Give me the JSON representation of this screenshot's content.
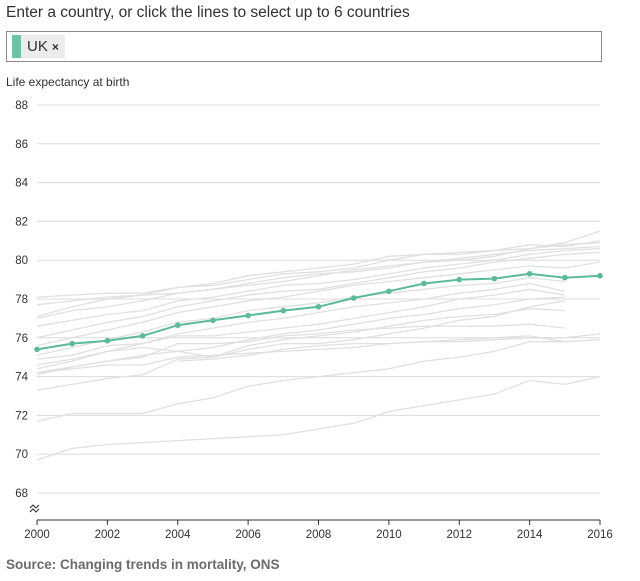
{
  "prompt": "Enter a country, or click the lines to select up to 6 countries",
  "selected_chips": [
    {
      "label": "UK",
      "remove_glyph": "×",
      "color": "#6cc4a4"
    }
  ],
  "source": "Source: Changing trends in mortality, ONS",
  "colors": {
    "highlight": "#5cba9b",
    "background_line": "#e0e0e0",
    "grid": "#dcdcdc",
    "axis": "#323132"
  },
  "chart_data": {
    "type": "line",
    "title": "",
    "xlabel": "",
    "ylabel": "Life expectancy at birth",
    "xlim": [
      2000,
      2016
    ],
    "ylim": [
      68,
      88
    ],
    "axis_break": true,
    "x_ticks": [
      "2000",
      "2002",
      "2004",
      "2006",
      "2008",
      "2010",
      "2012",
      "2014",
      "2016"
    ],
    "y_ticks": [
      "68",
      "70",
      "72",
      "74",
      "76",
      "78",
      "80",
      "82",
      "84",
      "86",
      "88"
    ],
    "grid": "horizontal",
    "x": [
      2000,
      2001,
      2002,
      2003,
      2004,
      2005,
      2006,
      2007,
      2008,
      2009,
      2010,
      2011,
      2012,
      2013,
      2014,
      2015,
      2016
    ],
    "series": [
      {
        "name": "UK",
        "highlighted": true,
        "values": [
          75.4,
          75.7,
          75.85,
          76.1,
          76.65,
          76.9,
          77.15,
          77.4,
          77.6,
          78.05,
          78.4,
          78.8,
          79.0,
          79.05,
          79.3,
          79.1,
          79.2
        ]
      },
      {
        "values": [
          78.1,
          78.2,
          78.3,
          78.3,
          78.6,
          78.8,
          79.2,
          79.4,
          79.6,
          79.8,
          80.2,
          80.3,
          80.4,
          80.5,
          80.8,
          80.7,
          81.0
        ]
      },
      {
        "values": [
          77.7,
          77.9,
          78.1,
          78.2,
          78.6,
          78.7,
          79.0,
          79.3,
          79.4,
          79.6,
          80.0,
          80.3,
          80.3,
          80.5,
          80.6,
          80.8,
          80.9
        ]
      },
      {
        "values": [
          77.1,
          77.6,
          78.0,
          78.2,
          78.3,
          78.5,
          78.7,
          78.9,
          79.2,
          79.5,
          79.7,
          79.9,
          80.1,
          80.3,
          80.5,
          80.6,
          80.7
        ]
      },
      {
        "values": [
          77.0,
          77.4,
          77.6,
          77.9,
          78.3,
          78.5,
          78.8,
          79.1,
          79.3,
          79.4,
          79.6,
          79.9,
          80.0,
          80.2,
          80.6,
          80.9,
          81.5
        ]
      },
      {
        "values": [
          76.6,
          76.9,
          77.2,
          77.4,
          77.9,
          78.1,
          78.4,
          78.7,
          78.8,
          79.0,
          79.3,
          79.6,
          79.8,
          80.0,
          80.3,
          80.5,
          80.6
        ]
      },
      {
        "values": [
          76.0,
          76.4,
          76.8,
          77.1,
          77.6,
          77.9,
          78.2,
          78.4,
          78.5,
          78.8,
          79.1,
          79.4,
          79.6,
          79.9,
          80.1,
          80.3,
          80.4
        ]
      },
      {
        "values": [
          75.6,
          76.0,
          76.4,
          76.8,
          77.3,
          77.6,
          77.9,
          78.1,
          78.4,
          78.7,
          78.9,
          79.1,
          79.3,
          79.5,
          79.7,
          79.6,
          79.9
        ]
      },
      {
        "values": [
          75.1,
          75.5,
          75.9,
          76.3,
          76.8,
          77.0,
          77.4,
          77.6,
          77.8,
          78.1,
          78.3,
          78.5,
          78.7,
          78.8,
          79.1,
          78.9,
          null
        ]
      },
      {
        "values": [
          74.4,
          74.8,
          75.3,
          75.7,
          76.2,
          76.5,
          76.8,
          77.0,
          77.3,
          77.6,
          77.8,
          78.0,
          78.3,
          78.5,
          78.8,
          78.4,
          null
        ]
      },
      {
        "values": [
          74.9,
          75.1,
          75.6,
          75.7,
          76.1,
          76.1,
          76.3,
          76.5,
          76.7,
          77.0,
          77.3,
          77.6,
          78.0,
          78.2,
          78.5,
          78.2,
          null
        ]
      },
      {
        "values": [
          74.1,
          74.5,
          74.8,
          75.0,
          75.7,
          75.7,
          75.8,
          76.1,
          76.2,
          76.4,
          76.5,
          76.6,
          76.6,
          76.6,
          76.7,
          76.5,
          null
        ]
      },
      {
        "values": [
          74.2,
          74.5,
          74.8,
          75.1,
          75.3,
          75.5,
          75.9,
          76.2,
          76.4,
          76.7,
          77.0,
          77.2,
          77.5,
          77.7,
          78.0,
          78.1,
          null
        ]
      },
      {
        "values": [
          74.6,
          74.9,
          75.3,
          75.5,
          75.3,
          75.0,
          75.6,
          75.9,
          76.1,
          76.3,
          76.6,
          76.9,
          77.1,
          77.2,
          77.5,
          77.4,
          null
        ]
      },
      {
        "values": [
          73.3,
          73.6,
          73.9,
          74.1,
          74.9,
          75.0,
          75.4,
          75.7,
          75.7,
          75.9,
          76.2,
          76.5,
          76.9,
          77.1,
          77.6,
          77.9,
          null
        ]
      },
      {
        "values": [
          74.2,
          74.4,
          74.6,
          74.6,
          75.0,
          75.1,
          75.2,
          75.3,
          75.4,
          75.5,
          75.7,
          75.8,
          75.9,
          76.0,
          76.1,
          75.8,
          null
        ]
      },
      {
        "values": [
          null,
          null,
          null,
          null,
          74.8,
          74.9,
          75.1,
          75.4,
          75.6,
          75.7,
          75.7,
          75.8,
          75.8,
          75.9,
          76.0,
          76.0,
          76.2
        ]
      },
      {
        "values": [
          71.7,
          72.1,
          72.1,
          72.1,
          72.6,
          72.9,
          73.5,
          73.8,
          74.0,
          74.2,
          74.4,
          74.8,
          75.0,
          75.3,
          75.8,
          75.8,
          75.9
        ]
      },
      {
        "values": [
          69.7,
          70.3,
          70.5,
          70.6,
          70.7,
          70.8,
          70.9,
          71.0,
          71.3,
          71.6,
          72.2,
          72.5,
          72.8,
          73.1,
          73.8,
          73.6,
          74.0
        ]
      }
    ]
  }
}
